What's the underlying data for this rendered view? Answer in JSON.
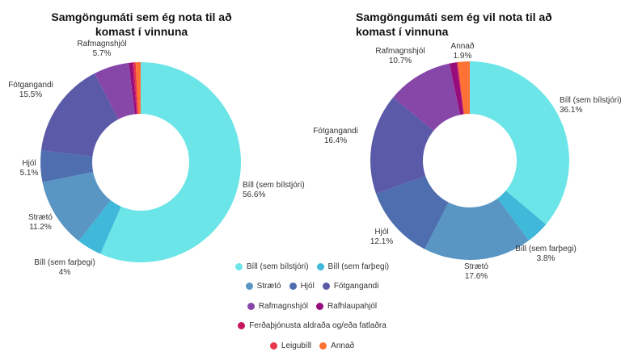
{
  "chart_data": [
    {
      "type": "pie",
      "title": "Samgöngumáti sem ég nota til að komast í vinnuna",
      "categories": [
        "Bíll (sem bílstjóri)",
        "Bíll (sem farþegi)",
        "Strætó",
        "Hjól",
        "Fótgangandi",
        "Rafmagnshjól",
        "Rafhlaupahjól",
        "Ferðaþjónusta aldraða og/eða fatlaðra",
        "Leigubíll",
        "Annað"
      ],
      "values": [
        56.6,
        4,
        11.2,
        5.1,
        15.5,
        5.7,
        0.6,
        0.2,
        0.3,
        0.8
      ],
      "labels": [
        "Bíll (sem bílstjóri)\n56.6%",
        "Bíll (sem farþegi)\n4%",
        "Strætó\n11.2%",
        "Hjól\n5.1%",
        "Fótgangandi\n15.5%",
        "Rafmagnshjól\n5.7%",
        "",
        "",
        "",
        ""
      ]
    },
    {
      "type": "pie",
      "title": "Samgöngumáti sem ég vil nota til að komast í vinnuna",
      "categories": [
        "Bíll (sem bílstjóri)",
        "Bíll (sem farþegi)",
        "Strætó",
        "Hjól",
        "Fótgangandi",
        "Rafmagnshjól",
        "Rafhlaupahjól",
        "Ferðaþjónusta aldraða og/eða fatlaðra",
        "Leigubíll",
        "Annað"
      ],
      "values": [
        36.1,
        3.8,
        17.6,
        12.1,
        16.4,
        10.7,
        1.2,
        0,
        0.2,
        1.9
      ],
      "labels": [
        "Bíll (sem bílstjóri)\n36.1%",
        "Bíll (sem farþegi)\n3.8%",
        "Strætó\n17.6%",
        "Hjól\n12.1%",
        "Fótgangandi\n16.4%",
        "Rafmagnshjól\n10.7%",
        "",
        "",
        "",
        "Annað\n1.9%"
      ]
    }
  ],
  "colors": [
    "#6ce5e8",
    "#3fb8d9",
    "#5996c4",
    "#4e6eb0",
    "#5b5aa8",
    "#8747a8",
    "#980d7c",
    "#c8145e",
    "#e8364a",
    "#ff7236"
  ],
  "legend": {
    "rows": [
      [
        0,
        1
      ],
      [
        2,
        3,
        4
      ],
      [
        5,
        6
      ],
      [
        7
      ],
      [
        8,
        9
      ]
    ]
  }
}
